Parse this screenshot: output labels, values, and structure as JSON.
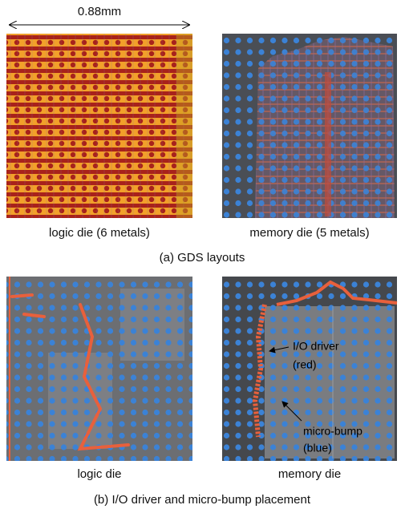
{
  "scale_label": "0.88mm",
  "panel_a": {
    "left_caption": "logic die (6 metals)",
    "right_caption": "memory die (5 metals)",
    "caption": "(a) GDS layouts"
  },
  "panel_b": {
    "left_caption": "logic die",
    "right_caption": "memory die",
    "caption": "(b) I/O driver and micro-bump placement",
    "annotations": {
      "io_driver": "I/O driver",
      "io_driver_color": "(red)",
      "micro_bump": "micro-bump",
      "micro_bump_color": "(blue)"
    }
  }
}
